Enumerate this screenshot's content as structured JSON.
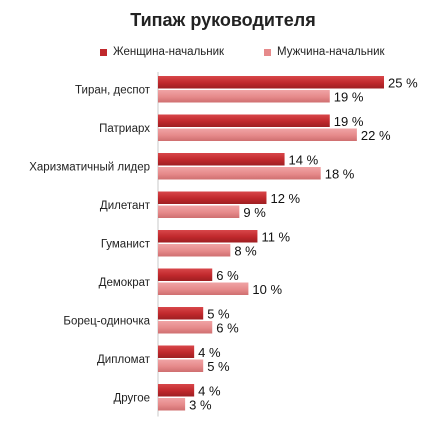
{
  "chart_data": {
    "type": "bar",
    "orientation": "horizontal",
    "title": "Типаж руководителя",
    "categories": [
      "Тиран, деспот",
      "Патриарх",
      "Харизматичный лидер",
      "Дилетант",
      "Гуманист",
      "Демократ",
      "Борец-одиночка",
      "Дипломат",
      "Другое"
    ],
    "series": [
      {
        "name": "Женщина-начальник",
        "color": "#c0282c",
        "values": [
          25,
          19,
          14,
          12,
          11,
          6,
          5,
          4,
          4
        ],
        "labels": [
          "25 %",
          "19 %",
          "14 %",
          "12 %",
          "11 %",
          "6 %",
          "5 %",
          "4 %",
          "4 %"
        ]
      },
      {
        "name": "Мужчина-начальник",
        "color": "#e68a8b",
        "values": [
          19,
          22,
          18,
          9,
          8,
          10,
          6,
          5,
          3
        ],
        "labels": [
          "19 %",
          "22 %",
          "18 %",
          "9 %",
          "8 %",
          "10 %",
          "6 %",
          "5 %",
          "3 %"
        ]
      }
    ],
    "xlim": [
      0,
      25
    ],
    "grid": false,
    "legend_position": "top"
  }
}
